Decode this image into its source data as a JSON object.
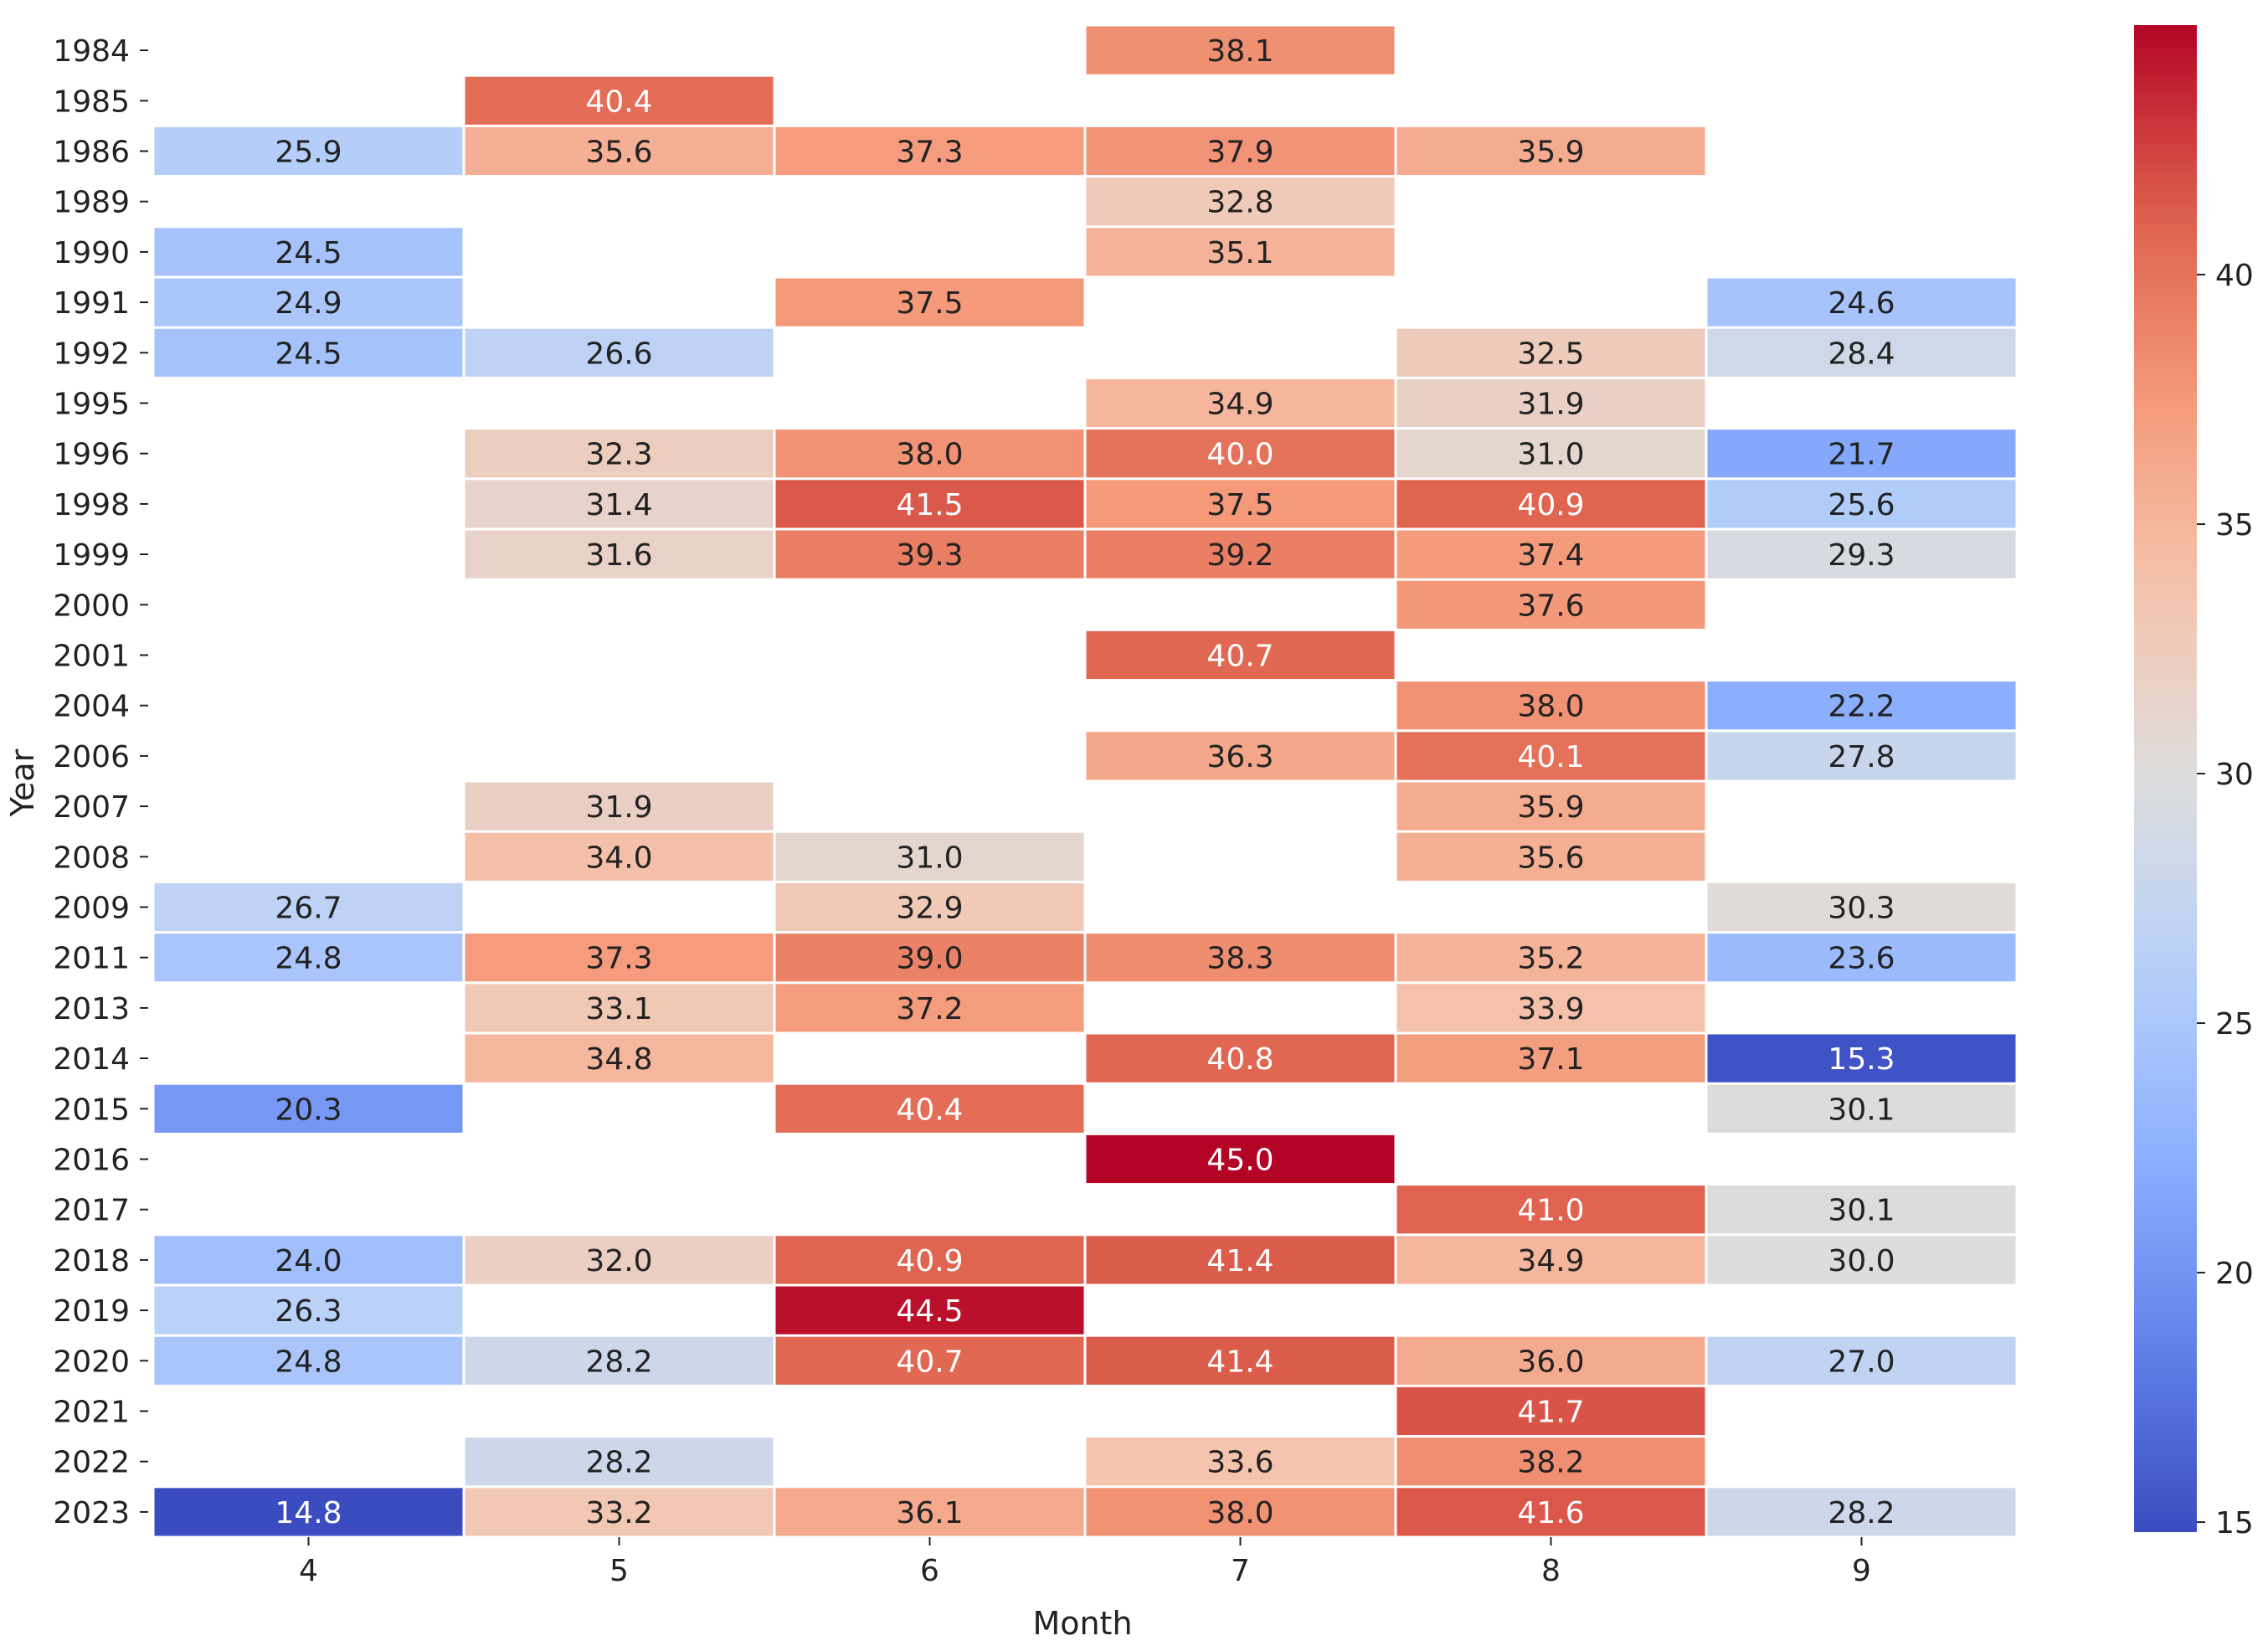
{
  "chart_data": {
    "type": "heatmap",
    "title": "",
    "xlabel": "Month",
    "ylabel": "Year",
    "columns": [
      "4",
      "5",
      "6",
      "7",
      "8",
      "9"
    ],
    "rows": [
      "1984",
      "1985",
      "1986",
      "1989",
      "1990",
      "1991",
      "1992",
      "1995",
      "1996",
      "1998",
      "1999",
      "2000",
      "2001",
      "2004",
      "2006",
      "2007",
      "2008",
      "2009",
      "2011",
      "2013",
      "2014",
      "2015",
      "2016",
      "2017",
      "2018",
      "2019",
      "2020",
      "2021",
      "2022",
      "2023"
    ],
    "values": [
      [
        null,
        null,
        null,
        38.1,
        null,
        null
      ],
      [
        null,
        40.4,
        null,
        null,
        null,
        null
      ],
      [
        25.9,
        35.6,
        37.3,
        37.9,
        35.9,
        null
      ],
      [
        null,
        null,
        null,
        32.8,
        null,
        null
      ],
      [
        24.5,
        null,
        null,
        35.1,
        null,
        null
      ],
      [
        24.9,
        null,
        37.5,
        null,
        null,
        24.6
      ],
      [
        24.5,
        26.6,
        null,
        null,
        32.5,
        28.4
      ],
      [
        null,
        null,
        null,
        34.9,
        31.9,
        null
      ],
      [
        null,
        32.3,
        38.0,
        40.0,
        31.0,
        21.7
      ],
      [
        null,
        31.4,
        41.5,
        37.5,
        40.9,
        25.6
      ],
      [
        null,
        31.6,
        39.3,
        39.2,
        37.4,
        29.3
      ],
      [
        null,
        null,
        null,
        null,
        37.6,
        null
      ],
      [
        null,
        null,
        null,
        40.7,
        null,
        null
      ],
      [
        null,
        null,
        null,
        null,
        38.0,
        22.2
      ],
      [
        null,
        null,
        null,
        36.3,
        40.1,
        27.8
      ],
      [
        null,
        31.9,
        null,
        null,
        35.9,
        null
      ],
      [
        null,
        34.0,
        31.0,
        null,
        35.6,
        null
      ],
      [
        26.7,
        null,
        32.9,
        null,
        null,
        30.3
      ],
      [
        24.8,
        37.3,
        39.0,
        38.3,
        35.2,
        23.6
      ],
      [
        null,
        33.1,
        37.2,
        null,
        33.9,
        null
      ],
      [
        null,
        34.8,
        null,
        40.8,
        37.1,
        15.3
      ],
      [
        20.3,
        null,
        40.4,
        null,
        null,
        30.1
      ],
      [
        null,
        null,
        null,
        45.0,
        null,
        null
      ],
      [
        null,
        null,
        null,
        null,
        41.0,
        30.1
      ],
      [
        24.0,
        32.0,
        40.9,
        41.4,
        34.9,
        30.0
      ],
      [
        26.3,
        null,
        44.5,
        null,
        null,
        null
      ],
      [
        24.8,
        28.2,
        40.7,
        41.4,
        36.0,
        27.0
      ],
      [
        null,
        null,
        null,
        null,
        41.7,
        null
      ],
      [
        null,
        28.2,
        null,
        33.6,
        38.2,
        null
      ],
      [
        14.8,
        33.2,
        36.1,
        38.0,
        41.6,
        28.2
      ]
    ],
    "colormap": "coolwarm",
    "vmin": 14.8,
    "vmax": 45.0,
    "colorbar_ticks": [
      15,
      20,
      25,
      30,
      35,
      40
    ],
    "colors": {
      "cold": "#3b4cc0",
      "neutral": "#dddcdc",
      "hot": "#b40426",
      "cell_border": "#ffffff"
    }
  }
}
